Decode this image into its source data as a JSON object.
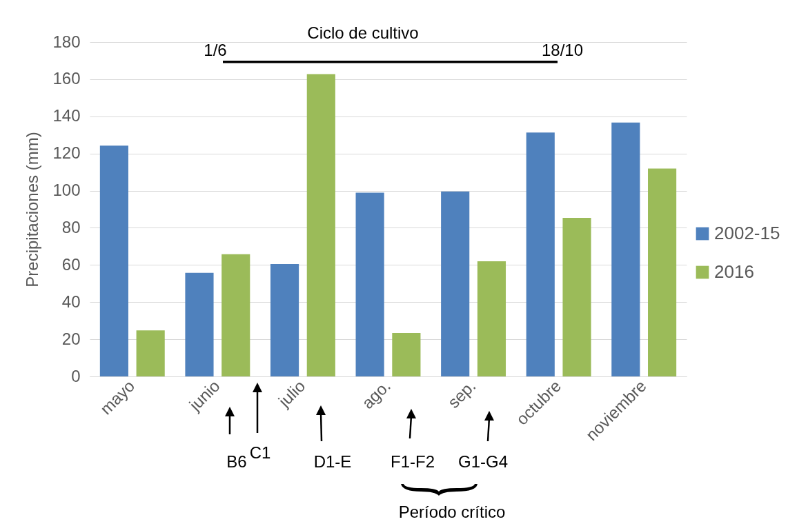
{
  "chart_data": {
    "type": "bar",
    "ylabel": "Precipitaciones (mm)",
    "categories": [
      "mayo",
      "junio",
      "julio",
      "ago.",
      "sep.",
      "octubre",
      "noviembre"
    ],
    "series": [
      {
        "name": "2002-15",
        "color": "#4f81bd",
        "values": [
          124.2,
          55.8,
          60.5,
          98.9,
          99.6,
          131.3,
          136.7
        ]
      },
      {
        "name": "2016",
        "color": "#9bbb59",
        "values": [
          24.8,
          65.8,
          162.7,
          23.4,
          62,
          85.4,
          111.9
        ]
      }
    ],
    "ylim": [
      0,
      180
    ],
    "yticks": [
      0,
      20,
      40,
      60,
      80,
      100,
      120,
      140,
      160,
      180
    ],
    "grid": "y",
    "legend": "right",
    "annotations": [
      "Ciclo de cultivo",
      "1/6",
      "18/10",
      "B6",
      "C1",
      "D1-E",
      "F1-F2",
      "G1-G4",
      "Período crítico"
    ]
  }
}
